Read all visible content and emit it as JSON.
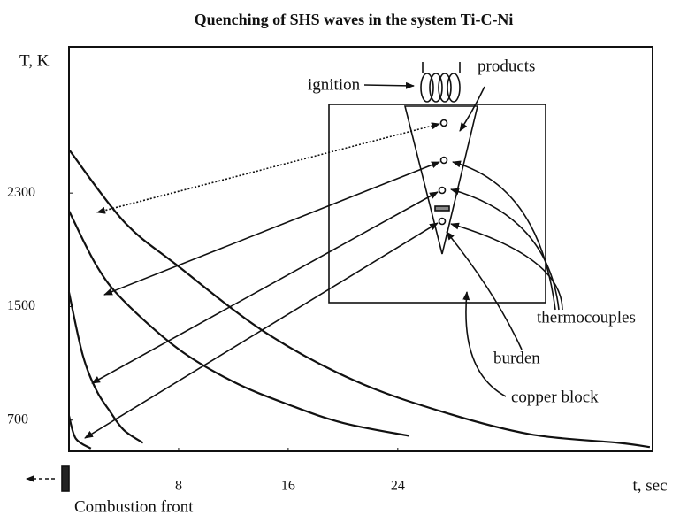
{
  "chart_data": {
    "type": "line",
    "title": "Quenching of SHS waves in the system Ti-C-Ni",
    "y_label": "T, K",
    "x_label": "t, sec",
    "xlim": [
      0,
      42.6
    ],
    "ylim": [
      480,
      3330
    ],
    "xticks": [
      8,
      16,
      24
    ],
    "yticks": [
      700,
      1500,
      2300
    ],
    "grid": false,
    "series": [
      {
        "color": "#111111",
        "x": [
          0.05,
          4,
          7.9,
          14.3,
          20.8,
          27.2,
          33.7,
          40.1,
          42.4
        ],
        "values": [
          2600,
          2100,
          1790,
          1320,
          980,
          760,
          600,
          540,
          510
        ]
      },
      {
        "color": "#111111",
        "x": [
          0,
          2,
          4,
          8,
          12,
          16,
          20,
          24.8
        ],
        "values": [
          2175,
          1790,
          1540,
          1200,
          970,
          810,
          680,
          590
        ]
      },
      {
        "color": "#111111",
        "x": [
          0,
          1,
          2,
          3,
          4,
          5.4
        ],
        "values": [
          1600,
          1160,
          910,
          760,
          630,
          540
        ]
      },
      {
        "color": "#111111",
        "x": [
          0,
          0.5,
          1.6
        ],
        "values": [
          730,
          570,
          500
        ]
      }
    ],
    "annotations": {
      "ignition": "ignition",
      "products": "products",
      "thermocouples": "thermocouples",
      "burden": "burden",
      "copper_block": "copper block",
      "combustion_front": "Combustion front"
    }
  }
}
